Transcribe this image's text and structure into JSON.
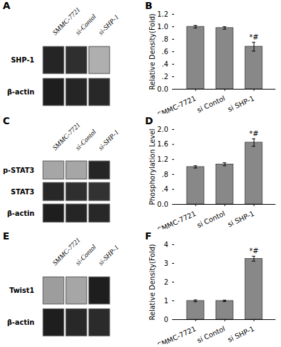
{
  "chart_data": [
    {
      "type": "heatmap",
      "title": "A",
      "x": [
        "SMMC-7721",
        "si-Contol",
        "si-SHP-1"
      ],
      "y": [
        "SHP-1",
        "β-actin"
      ],
      "cells": [
        [
          0.88,
          0.85,
          0.42
        ],
        [
          0.9,
          0.88,
          0.87
        ]
      ],
      "clim": [
        0,
        1
      ]
    },
    {
      "type": "bar",
      "title": "B",
      "categories": [
        "SMMC-7721",
        "si Contol",
        "si SHP-1"
      ],
      "values": [
        1.0,
        0.98,
        0.68
      ],
      "errors": [
        0.02,
        0.02,
        0.07
      ],
      "color": "#888888",
      "ylabel": "Relative Density(Fold)",
      "ylim": [
        0,
        1.2
      ],
      "yticks": [
        {
          "value": 0.0,
          "label": "0.0"
        },
        {
          "value": 0.2,
          "label": ".2"
        },
        {
          "value": 0.4,
          "label": ".4"
        },
        {
          "value": 0.6,
          "label": ".6"
        },
        {
          "value": 0.8,
          "label": ".8"
        },
        {
          "value": 1.0,
          "label": "1.0"
        },
        1.2
      ],
      "annotation": {
        "text": "*#",
        "category": "si SHP-1"
      }
    },
    {
      "type": "heatmap",
      "title": "C",
      "x": [
        "SMMC-7721",
        "si-Contol",
        "si-SHP-1"
      ],
      "y": [
        "p-STAT3",
        "STAT3",
        "β-actin"
      ],
      "cells": [
        [
          0.45,
          0.45,
          0.88
        ],
        [
          0.87,
          0.85,
          0.84
        ],
        [
          0.9,
          0.88,
          0.87
        ]
      ],
      "clim": [
        0,
        1
      ]
    },
    {
      "type": "bar",
      "title": "D",
      "categories": [
        "SMMC-7721",
        "si Contol",
        "si SHP-1"
      ],
      "values": [
        1.0,
        1.07,
        1.65
      ],
      "errors": [
        0.03,
        0.04,
        0.1
      ],
      "color": "#888888",
      "ylabel": "Phosphorylation Level",
      "ylim": [
        0,
        2.0
      ],
      "yticks": [
        {
          "value": 0.0,
          "label": "0.0"
        },
        {
          "value": 0.4,
          "label": ".4"
        },
        {
          "value": 0.8,
          "label": ".8"
        },
        1.2,
        1.6,
        {
          "value": 2.0,
          "label": "2.0"
        }
      ],
      "annotation": {
        "text": "*#",
        "category": "si SHP-1"
      }
    },
    {
      "type": "heatmap",
      "title": "E",
      "x": [
        "SMMC-7721",
        "si-Contol",
        "si-SHP-1"
      ],
      "y": [
        "Twist1",
        "β-actin"
      ],
      "cells": [
        [
          0.48,
          0.45,
          0.9
        ],
        [
          0.9,
          0.87,
          0.86
        ]
      ],
      "clim": [
        0,
        1
      ]
    },
    {
      "type": "bar",
      "title": "F",
      "categories": [
        "SMMC-7721",
        "si Contol",
        "si SHP-1"
      ],
      "values": [
        1.0,
        1.0,
        3.25
      ],
      "errors": [
        0.05,
        0.04,
        0.13
      ],
      "color": "#888888",
      "ylabel": "Relative Density(Fold)",
      "ylim": [
        0,
        4.0
      ],
      "yticks": [
        0,
        1,
        2,
        3,
        4
      ],
      "annotation": {
        "text": "*#",
        "category": "si SHP-1"
      }
    }
  ]
}
